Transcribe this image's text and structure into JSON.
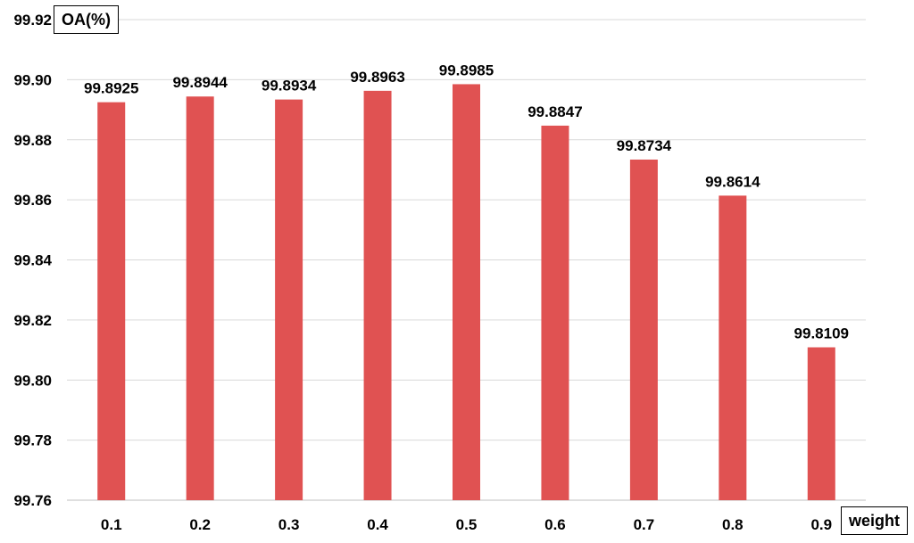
{
  "chart_data": {
    "type": "bar",
    "title": "",
    "ylabel": "OA(%)",
    "xlabel": "weight",
    "categories": [
      "0.1",
      "0.2",
      "0.3",
      "0.4",
      "0.5",
      "0.6",
      "0.7",
      "0.8",
      "0.9"
    ],
    "values": [
      99.8925,
      99.8944,
      99.8934,
      99.8963,
      99.8985,
      99.8847,
      99.8734,
      99.8614,
      99.8109
    ],
    "data_labels": [
      "99.8925",
      "99.8944",
      "99.8934",
      "99.8963",
      "99.8985",
      "99.8847",
      "99.8734",
      "99.8614",
      "99.8109"
    ],
    "ylim": [
      99.76,
      99.92
    ],
    "yticks": [
      "99.92",
      "99.90",
      "99.88",
      "99.86",
      "99.84",
      "99.82",
      "99.80",
      "99.78",
      "99.76"
    ],
    "grid": true,
    "legend": "none",
    "bar_color": "#E05252",
    "grid_color": "#D9D9D9",
    "axis_color": "#BFBFBF"
  }
}
